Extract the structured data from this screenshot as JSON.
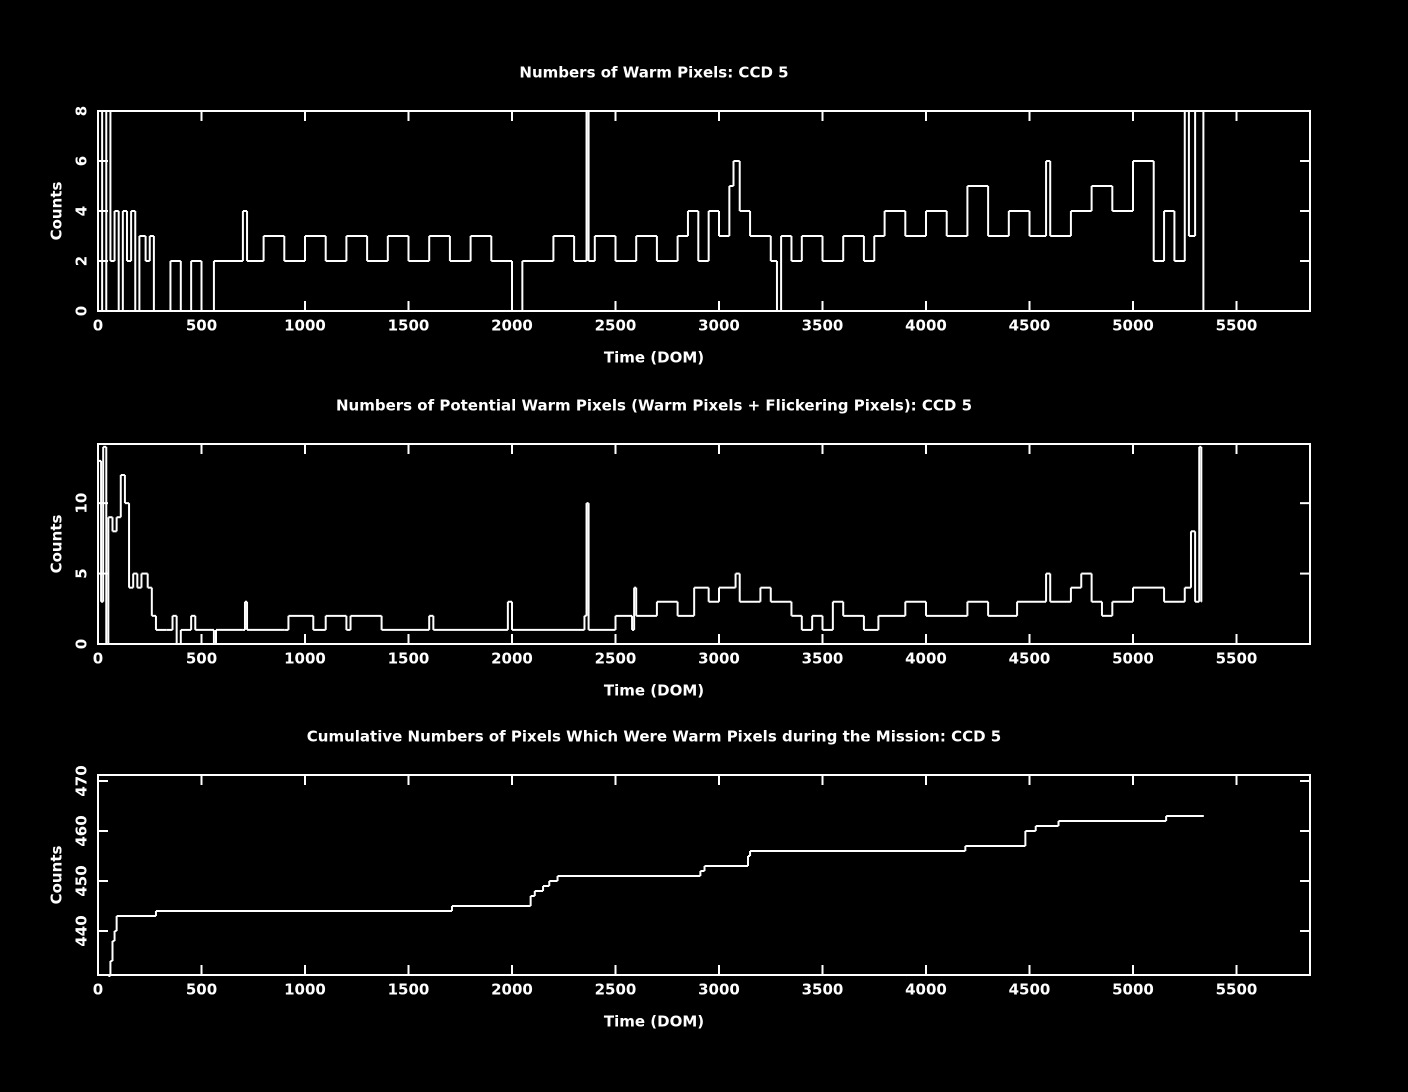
{
  "chart_data": [
    {
      "type": "line",
      "drawstyle": "steps-post",
      "color": "#ffffff",
      "title": "Numbers of Warm Pixels: CCD 5",
      "xlabel": "Time (DOM)",
      "ylabel": "Counts",
      "xlim": [
        0,
        5855
      ],
      "ylim": [
        0,
        8
      ],
      "xticks": [
        0,
        500,
        1000,
        1500,
        2000,
        2500,
        3000,
        3500,
        4000,
        4500,
        5000,
        5500
      ],
      "yticks": [
        0,
        2,
        4,
        6,
        8
      ],
      "x": [
        0,
        20,
        40,
        60,
        80,
        100,
        120,
        140,
        160,
        180,
        200,
        230,
        250,
        270,
        350,
        400,
        450,
        500,
        560,
        700,
        720,
        800,
        900,
        1000,
        1100,
        1200,
        1300,
        1400,
        1500,
        1600,
        1700,
        1800,
        1900,
        2000,
        2050,
        2200,
        2300,
        2360,
        2370,
        2400,
        2500,
        2600,
        2700,
        2800,
        2850,
        2900,
        2950,
        3000,
        3050,
        3070,
        3100,
        3150,
        3250,
        3280,
        3300,
        3350,
        3400,
        3500,
        3600,
        3700,
        3750,
        3800,
        3900,
        4000,
        4100,
        4200,
        4300,
        4400,
        4500,
        4580,
        4600,
        4700,
        4800,
        4900,
        5000,
        5100,
        5150,
        5200,
        5250,
        5270,
        5300,
        5340
      ],
      "values": [
        8,
        0,
        8,
        2,
        4,
        0,
        4,
        2,
        4,
        0,
        3,
        2,
        3,
        0,
        2,
        0,
        2,
        0,
        2,
        4,
        2,
        3,
        2,
        3,
        2,
        3,
        2,
        3,
        2,
        3,
        2,
        3,
        2,
        0,
        2,
        3,
        2,
        8,
        2,
        3,
        2,
        3,
        2,
        3,
        4,
        2,
        4,
        3,
        5,
        6,
        4,
        3,
        2,
        0,
        3,
        2,
        3,
        2,
        3,
        2,
        3,
        4,
        3,
        4,
        3,
        5,
        3,
        4,
        3,
        6,
        3,
        4,
        5,
        4,
        6,
        2,
        4,
        2,
        8,
        3,
        8,
        0
      ]
    },
    {
      "type": "line",
      "drawstyle": "steps-post",
      "color": "#ffffff",
      "title": "Numbers of Potential Warm Pixels (Warm Pixels + Flickering Pixels): CCD 5",
      "xlabel": "Time (DOM)",
      "ylabel": "Counts",
      "xlim": [
        0,
        5855
      ],
      "ylim": [
        0,
        14.2
      ],
      "xticks": [
        0,
        500,
        1000,
        1500,
        2000,
        2500,
        3000,
        3500,
        4000,
        4500,
        5000,
        5500
      ],
      "yticks": [
        0,
        5,
        10
      ],
      "x": [
        0,
        15,
        25,
        40,
        50,
        70,
        90,
        110,
        130,
        150,
        170,
        190,
        210,
        240,
        260,
        280,
        330,
        360,
        380,
        400,
        450,
        470,
        560,
        570,
        700,
        710,
        720,
        900,
        920,
        1040,
        1100,
        1200,
        1220,
        1370,
        1600,
        1620,
        1980,
        2000,
        2350,
        2360,
        2370,
        2500,
        2580,
        2590,
        2600,
        2700,
        2800,
        2880,
        2950,
        3000,
        3080,
        3100,
        3200,
        3250,
        3350,
        3400,
        3450,
        3500,
        3550,
        3600,
        3700,
        3770,
        3900,
        4000,
        4200,
        4300,
        4440,
        4580,
        4600,
        4700,
        4750,
        4800,
        4850,
        4900,
        5000,
        5150,
        5250,
        5280,
        5300,
        5320,
        5330
      ],
      "values": [
        13,
        3,
        14,
        0,
        9,
        8,
        9,
        12,
        10,
        4,
        5,
        4,
        5,
        4,
        2,
        1,
        1,
        2,
        0,
        1,
        2,
        1,
        0,
        1,
        1,
        3,
        1,
        1,
        2,
        1,
        2,
        1,
        2,
        1,
        2,
        1,
        3,
        1,
        2,
        10,
        1,
        2,
        1,
        4,
        2,
        3,
        2,
        4,
        3,
        4,
        5,
        3,
        4,
        3,
        2,
        1,
        2,
        1,
        3,
        2,
        1,
        2,
        3,
        2,
        3,
        2,
        3,
        5,
        3,
        4,
        5,
        3,
        2,
        3,
        4,
        3,
        4,
        8,
        3,
        14,
        3
      ]
    },
    {
      "type": "line",
      "drawstyle": "steps-post",
      "color": "#ffffff",
      "title": "Cumulative Numbers of Pixels Which Were Warm Pixels during the Mission: CCD 5",
      "xlabel": "Time (DOM)",
      "ylabel": "Counts",
      "xlim": [
        0,
        5855
      ],
      "ylim": [
        431.2,
        471.2
      ],
      "xticks": [
        0,
        500,
        1000,
        1500,
        2000,
        2500,
        3000,
        3500,
        4000,
        4500,
        5000,
        5500
      ],
      "yticks": [
        440,
        450,
        460,
        470
      ],
      "x": [
        50,
        60,
        70,
        80,
        90,
        280,
        1710,
        2090,
        2110,
        2150,
        2180,
        2220,
        2910,
        2930,
        3140,
        3150,
        4190,
        4480,
        4530,
        4640,
        5160,
        5340
      ],
      "values": [
        431,
        434,
        438,
        440,
        443,
        444,
        445,
        447,
        448,
        449,
        450,
        451,
        452,
        453,
        455,
        456,
        457,
        460,
        461,
        462,
        463,
        463
      ]
    }
  ]
}
